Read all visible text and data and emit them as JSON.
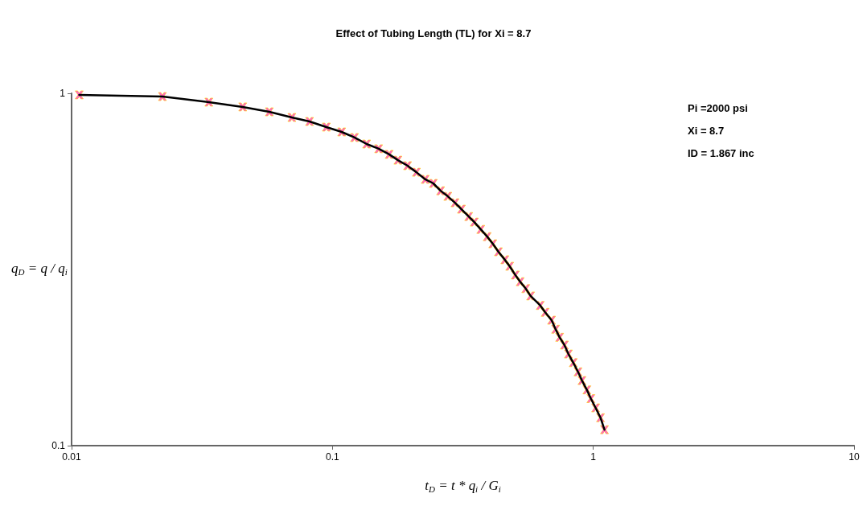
{
  "chart_data": {
    "type": "line",
    "title": "Effect of Tubing Length (TL) for Xi = 8.7",
    "xlabel": "t$_{D}$ = t * q$_{i}$ / G$_{i}$",
    "ylabel": "q$_{D}$ = q / q$_{i}$",
    "annotations": [
      "Pi =2000 psi",
      "Xi = 8.7",
      "ID = 1.867 inc"
    ],
    "x": [
      0.0107,
      0.0223,
      0.0336,
      0.0453,
      0.0573,
      0.0699,
      0.0817,
      0.0948,
      0.1085,
      0.1215,
      0.1352,
      0.1504,
      0.165,
      0.1783,
      0.1941,
      0.2099,
      0.2269,
      0.2437,
      0.2598,
      0.2769,
      0.2951,
      0.3123,
      0.333,
      0.3499,
      0.3704,
      0.392,
      0.4119,
      0.4329,
      0.4581,
      0.4781,
      0.5025,
      0.5245,
      0.551,
      0.575,
      0.626,
      0.654,
      0.692,
      0.717,
      0.743,
      0.775,
      0.803,
      0.838,
      0.874,
      0.905,
      0.945,
      0.979,
      1.021,
      1.066,
      1.104
    ],
    "series": [
      {
        "type": "line",
        "color": "#000000",
        "marker": "none",
        "values": [
          0.99,
          0.979,
          0.944,
          0.915,
          0.886,
          0.854,
          0.832,
          0.802,
          0.777,
          0.749,
          0.718,
          0.696,
          0.671,
          0.646,
          0.623,
          0.597,
          0.57,
          0.555,
          0.529,
          0.51,
          0.489,
          0.469,
          0.447,
          0.431,
          0.411,
          0.392,
          0.374,
          0.355,
          0.337,
          0.323,
          0.305,
          0.292,
          0.279,
          0.266,
          0.25,
          0.239,
          0.227,
          0.214,
          0.203,
          0.193,
          0.182,
          0.172,
          0.162,
          0.153,
          0.144,
          0.136,
          0.128,
          0.12,
          0.111
        ]
      },
      {
        "type": "scatter",
        "color": "#ff33cc",
        "marker": "cross",
        "values": [
          0.99,
          0.979,
          0.944,
          0.915,
          0.886,
          0.854,
          0.832,
          0.802,
          0.777,
          0.749,
          0.718,
          0.696,
          0.671,
          0.646,
          0.623,
          0.597,
          0.57,
          0.555,
          0.529,
          0.51,
          0.489,
          0.469,
          0.447,
          0.431,
          0.411,
          0.392,
          0.374,
          0.355,
          0.337,
          0.323,
          0.305,
          0.292,
          0.279,
          0.266,
          0.25,
          0.239,
          0.227,
          0.214,
          0.203,
          0.193,
          0.182,
          0.172,
          0.162,
          0.153,
          0.144,
          0.136,
          0.128,
          0.12,
          0.111
        ]
      }
    ],
    "log": "xy",
    "xlim": [
      0.01,
      10
    ],
    "xticks": [
      0.01,
      0.1,
      1,
      10
    ],
    "ylim": [
      0.1,
      1
    ],
    "yticks": [
      0.1,
      1
    ],
    "grid": false
  }
}
